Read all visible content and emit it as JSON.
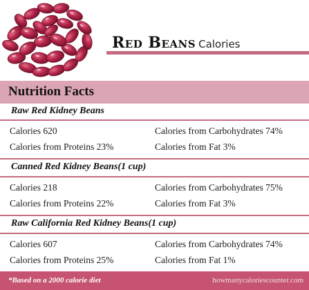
{
  "title": {
    "main": "Red Beans",
    "sub": "Calories"
  },
  "header": "Nutrition Facts",
  "sections": [
    {
      "label": "Raw Red Kidney Beans",
      "calories": "Calories 620",
      "carbs": "Calories from Carbohydrates 74%",
      "proteins": "Calories from Proteins 23%",
      "fat": "Calories from Fat 3%"
    },
    {
      "label": "Canned Red Kidney Beans(1 cup)",
      "calories": "Calories 218",
      "carbs": "Calories from Carbohydrates 75%",
      "proteins": "Calories from Proteins 22%",
      "fat": "Calories from Fat 3%"
    },
    {
      "label": "Raw California Red Kidney Beans(1 cup)",
      "calories": "Calories 607",
      "carbs": "Calories from Carbohydrates 74%",
      "proteins": "Calories from Proteins 25%",
      "fat": "Calories from Fat 1%"
    }
  ],
  "footer": {
    "note": "*Based on a 2000 calorie diet",
    "site": "howmanycaloriescounter.com"
  },
  "colors": {
    "accent": "#c56a7f",
    "header_bg": "#dba5b4",
    "footer_bg": "#c65470",
    "bean": "#9e1538"
  }
}
